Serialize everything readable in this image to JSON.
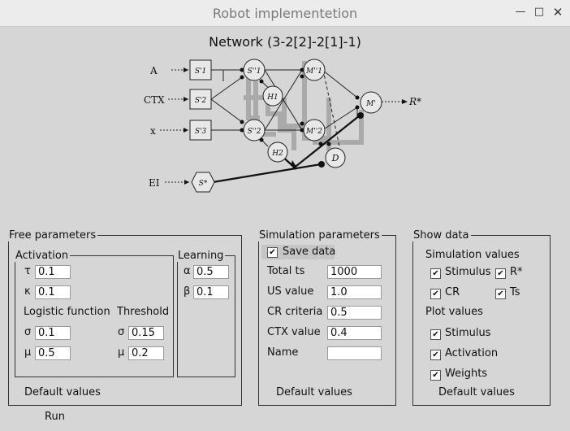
{
  "window": {
    "title": "Robot implementetion",
    "minimize_glyph": "✕",
    "buttons": [
      "minimize",
      "maximize",
      "close"
    ]
  },
  "diagram": {
    "title": "Network (3-2[2]-2[1]-1)",
    "inputs": [
      "A",
      "CTX",
      "x",
      "EI"
    ],
    "output": "R*",
    "nodes": {
      "s1": "S'1",
      "s2": "S'2",
      "s3": "S'3",
      "sh1": "S''1",
      "sh2": "S''2",
      "h1": "H1",
      "h2": "H2",
      "m1": "M''1",
      "m2": "M''2",
      "mo": "M'",
      "d": "D",
      "se": "S*"
    }
  },
  "free_parameters": {
    "legend": "Free parameters",
    "activation": {
      "legend": "Activation",
      "tau_label": "τ",
      "tau": "0.1",
      "kappa_label": "κ",
      "kappa": "0.1",
      "logistic_label": "Logistic function",
      "threshold_label": "Threshold",
      "sigma_label": "σ",
      "sigma": "0.1",
      "mu_label": "μ",
      "mu": "0.5",
      "th_sigma_label": "σ",
      "th_sigma": "0.15",
      "th_mu_label": "μ",
      "th_mu": "0.2"
    },
    "learning": {
      "legend": "Learning",
      "alpha_label": "α",
      "alpha": "0.5",
      "beta_label": "β",
      "beta": "0.1"
    },
    "default_button": "Default values"
  },
  "simulation_parameters": {
    "legend": "Simulation parameters",
    "save_data_label": "Save data",
    "save_data": true,
    "total_ts_label": "Total ts",
    "total_ts": "1000",
    "us_value_label": "US value",
    "us_value": "1.0",
    "cr_criteria_label": "CR criteria",
    "cr_criteria": "0.5",
    "ctx_value_label": "CTX value",
    "ctx_value": "0.4",
    "name_label": "Name",
    "name": "",
    "default_button": "Default values"
  },
  "show_data": {
    "legend": "Show data",
    "simulation_values_label": "Simulation values",
    "stimulus_label": "Stimulus",
    "stimulus": true,
    "rstar_label": "R*",
    "rstar": true,
    "cr_label": "CR",
    "cr": true,
    "ts_label": "Ts",
    "ts": true,
    "plot_values_label": "Plot values",
    "plot_stimulus_label": "Stimulus",
    "plot_stimulus": true,
    "activation_label": "Activation",
    "activation": true,
    "weights_label": "Weights",
    "weights": true,
    "default_button": "Default values"
  },
  "run_button": "Run",
  "check_glyph": "✔"
}
